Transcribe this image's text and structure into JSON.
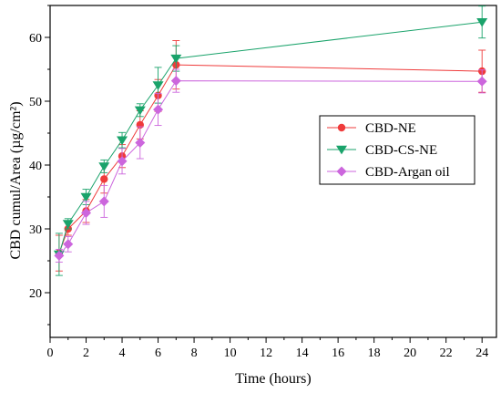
{
  "chart_data": {
    "type": "line",
    "xlabel": "Time (hours)",
    "ylabel": "CBD cumul/Area (µg/cm²)",
    "xlim": [
      0,
      24.8
    ],
    "ylim": [
      13,
      65
    ],
    "xticks": [
      0,
      2,
      4,
      6,
      8,
      10,
      12,
      14,
      16,
      18,
      20,
      22,
      24
    ],
    "yticks": [
      20,
      30,
      40,
      50,
      60
    ],
    "x": [
      0.5,
      1,
      2,
      3,
      4,
      5,
      6,
      7,
      24
    ],
    "legend_position": "right",
    "series": [
      {
        "name": "CBD-NE",
        "color": "#ef3b3b",
        "marker": "circle",
        "values": [
          26.2,
          30.0,
          32.8,
          37.8,
          41.4,
          46.3,
          50.9,
          55.7,
          54.7
        ],
        "errors": [
          2.8,
          1.0,
          1.8,
          2.2,
          1.8,
          2.2,
          2.5,
          3.8,
          3.3
        ]
      },
      {
        "name": "CBD-CS-NE",
        "color": "#1aa36b",
        "marker": "triangle-down",
        "values": [
          26.0,
          30.8,
          35.0,
          39.8,
          43.9,
          48.6,
          52.5,
          56.7,
          62.4
        ],
        "errors": [
          3.3,
          0.8,
          1.2,
          1.0,
          1.2,
          1.0,
          2.8,
          2.0,
          2.5
        ]
      },
      {
        "name": "CBD-Argan oil",
        "color": "#cc66dd",
        "marker": "diamond",
        "values": [
          25.8,
          27.6,
          32.5,
          34.3,
          40.6,
          43.5,
          48.7,
          53.2,
          53.1
        ],
        "errors": [
          1.0,
          1.2,
          1.8,
          2.5,
          2.0,
          2.5,
          2.5,
          1.8,
          1.8
        ]
      }
    ]
  }
}
